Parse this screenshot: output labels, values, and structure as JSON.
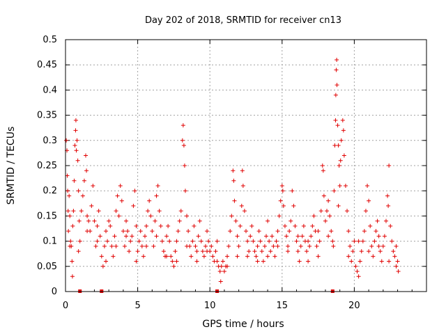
{
  "chart_data": {
    "type": "scatter",
    "title": "Day 202 of 2018, SRMTID for receiver cn13",
    "xlabel": "GPS time / hours",
    "ylabel": "SRMTID / TECUs",
    "xlim": [
      0,
      25
    ],
    "ylim": [
      0,
      0.5
    ],
    "x_ticks": [
      0,
      5,
      10,
      15,
      20
    ],
    "x_tick_labels": [
      "0",
      "5",
      "10",
      "15",
      "20"
    ],
    "y_ticks": [
      0,
      0.05,
      0.1,
      0.15,
      0.2,
      0.25,
      0.3,
      0.35,
      0.4,
      0.45,
      0.5
    ],
    "y_tick_labels": [
      "0",
      "0.05",
      "0.1",
      "0.15",
      "0.2",
      "0.25",
      "0.3",
      "0.35",
      "0.4",
      "0.45",
      "0.5"
    ],
    "grid": true,
    "marker": "+",
    "color": "#e00000",
    "series": [
      {
        "name": "SRMTID",
        "points": [
          [
            0.05,
            0.3
          ],
          [
            0.1,
            0.28
          ],
          [
            0.12,
            0.23
          ],
          [
            0.15,
            0.2
          ],
          [
            0.18,
            0.16
          ],
          [
            0.2,
            0.12
          ],
          [
            0.25,
            0.19
          ],
          [
            0.3,
            0.15
          ],
          [
            0.35,
            0.1
          ],
          [
            0.4,
            0.09
          ],
          [
            0.45,
            0.06
          ],
          [
            0.48,
            0.03
          ],
          [
            0.5,
            0.13
          ],
          [
            0.55,
            0.16
          ],
          [
            0.6,
            0.22
          ],
          [
            0.65,
            0.29
          ],
          [
            0.7,
            0.32
          ],
          [
            0.72,
            0.34
          ],
          [
            0.75,
            0.28
          ],
          [
            0.8,
            0.3
          ],
          [
            0.85,
            0.26
          ],
          [
            0.9,
            0.2
          ],
          [
            0.95,
            0.14
          ],
          [
            1.0,
            0.1
          ],
          [
            1.1,
            0.16
          ],
          [
            1.2,
            0.19
          ],
          [
            1.3,
            0.22
          ],
          [
            1.4,
            0.27
          ],
          [
            1.45,
            0.24
          ],
          [
            1.5,
            0.15
          ],
          [
            1.6,
            0.14
          ],
          [
            1.7,
            0.12
          ],
          [
            1.8,
            0.17
          ],
          [
            1.9,
            0.21
          ],
          [
            2.0,
            0.14
          ],
          [
            2.1,
            0.09
          ],
          [
            2.2,
            0.13
          ],
          [
            2.3,
            0.16
          ],
          [
            2.4,
            0.11
          ],
          [
            2.5,
            0.07
          ],
          [
            2.6,
            0.05
          ],
          [
            2.7,
            0.09
          ],
          [
            2.8,
            0.12
          ],
          [
            2.9,
            0.1
          ],
          [
            3.0,
            0.14
          ],
          [
            3.1,
            0.13
          ],
          [
            3.2,
            0.09
          ],
          [
            3.3,
            0.07
          ],
          [
            3.4,
            0.11
          ],
          [
            3.5,
            0.16
          ],
          [
            3.6,
            0.19
          ],
          [
            3.7,
            0.15
          ],
          [
            3.8,
            0.21
          ],
          [
            3.9,
            0.18
          ],
          [
            4.0,
            0.12
          ],
          [
            4.1,
            0.09
          ],
          [
            4.2,
            0.14
          ],
          [
            4.3,
            0.12
          ],
          [
            4.4,
            0.08
          ],
          [
            4.5,
            0.1
          ],
          [
            4.6,
            0.11
          ],
          [
            4.7,
            0.17
          ],
          [
            4.8,
            0.2
          ],
          [
            4.9,
            0.13
          ],
          [
            5.0,
            0.08
          ],
          [
            5.1,
            0.1
          ],
          [
            5.2,
            0.12
          ],
          [
            5.3,
            0.09
          ],
          [
            5.4,
            0.07
          ],
          [
            5.5,
            0.11
          ],
          [
            5.6,
            0.13
          ],
          [
            5.7,
            0.16
          ],
          [
            5.8,
            0.18
          ],
          [
            5.9,
            0.15
          ],
          [
            6.0,
            0.12
          ],
          [
            6.1,
            0.09
          ],
          [
            6.2,
            0.14
          ],
          [
            6.3,
            0.19
          ],
          [
            6.4,
            0.21
          ],
          [
            6.5,
            0.16
          ],
          [
            6.6,
            0.13
          ],
          [
            6.7,
            0.1
          ],
          [
            6.8,
            0.08
          ],
          [
            6.9,
            0.07
          ],
          [
            7.0,
            0.11
          ],
          [
            7.1,
            0.13
          ],
          [
            7.2,
            0.1
          ],
          [
            7.3,
            0.07
          ],
          [
            7.4,
            0.06
          ],
          [
            7.5,
            0.05
          ],
          [
            7.6,
            0.08
          ],
          [
            7.7,
            0.1
          ],
          [
            7.8,
            0.12
          ],
          [
            7.9,
            0.14
          ],
          [
            8.0,
            0.16
          ],
          [
            8.1,
            0.3
          ],
          [
            8.15,
            0.33
          ],
          [
            8.2,
            0.29
          ],
          [
            8.25,
            0.25
          ],
          [
            8.3,
            0.2
          ],
          [
            8.4,
            0.15
          ],
          [
            8.5,
            0.12
          ],
          [
            8.6,
            0.09
          ],
          [
            8.7,
            0.07
          ],
          [
            8.8,
            0.1
          ],
          [
            8.9,
            0.13
          ],
          [
            9.0,
            0.09
          ],
          [
            9.1,
            0.08
          ],
          [
            9.2,
            0.11
          ],
          [
            9.3,
            0.14
          ],
          [
            9.4,
            0.1
          ],
          [
            9.5,
            0.08
          ],
          [
            9.6,
            0.07
          ],
          [
            9.7,
            0.09
          ],
          [
            9.8,
            0.12
          ],
          [
            9.9,
            0.1
          ],
          [
            10.0,
            0.08
          ],
          [
            10.1,
            0.09
          ],
          [
            10.2,
            0.07
          ],
          [
            10.3,
            0.06
          ],
          [
            10.4,
            0.08
          ],
          [
            10.5,
            0.1
          ],
          [
            10.6,
            0.05
          ],
          [
            10.7,
            0.04
          ],
          [
            10.75,
            0.02
          ],
          [
            10.8,
            0.05
          ],
          [
            10.9,
            0.06
          ],
          [
            11.0,
            0.04
          ],
          [
            11.1,
            0.05
          ],
          [
            11.2,
            0.07
          ],
          [
            11.3,
            0.09
          ],
          [
            11.4,
            0.12
          ],
          [
            11.5,
            0.15
          ],
          [
            11.6,
            0.24
          ],
          [
            11.65,
            0.22
          ],
          [
            11.7,
            0.18
          ],
          [
            11.8,
            0.14
          ],
          [
            11.9,
            0.11
          ],
          [
            12.0,
            0.09
          ],
          [
            12.1,
            0.13
          ],
          [
            12.2,
            0.17
          ],
          [
            12.25,
            0.24
          ],
          [
            12.3,
            0.21
          ],
          [
            12.4,
            0.16
          ],
          [
            12.5,
            0.12
          ],
          [
            12.6,
            0.1
          ],
          [
            12.7,
            0.08
          ],
          [
            12.8,
            0.11
          ],
          [
            12.9,
            0.13
          ],
          [
            13.0,
            0.1
          ],
          [
            13.1,
            0.08
          ],
          [
            13.2,
            0.07
          ],
          [
            13.3,
            0.09
          ],
          [
            13.4,
            0.12
          ],
          [
            13.5,
            0.1
          ],
          [
            13.6,
            0.08
          ],
          [
            13.7,
            0.06
          ],
          [
            13.8,
            0.09
          ],
          [
            13.9,
            0.11
          ],
          [
            14.0,
            0.14
          ],
          [
            14.1,
            0.1
          ],
          [
            14.2,
            0.08
          ],
          [
            14.3,
            0.11
          ],
          [
            14.4,
            0.09
          ],
          [
            14.5,
            0.07
          ],
          [
            14.6,
            0.1
          ],
          [
            14.7,
            0.12
          ],
          [
            14.8,
            0.15
          ],
          [
            14.9,
            0.18
          ],
          [
            15.0,
            0.21
          ],
          [
            15.05,
            0.2
          ],
          [
            15.1,
            0.17
          ],
          [
            15.2,
            0.13
          ],
          [
            15.3,
            0.11
          ],
          [
            15.4,
            0.09
          ],
          [
            15.5,
            0.12
          ],
          [
            15.6,
            0.14
          ],
          [
            15.7,
            0.2
          ],
          [
            15.8,
            0.17
          ],
          [
            15.9,
            0.13
          ],
          [
            16.0,
            0.1
          ],
          [
            16.1,
            0.08
          ],
          [
            16.2,
            0.06
          ],
          [
            16.3,
            0.09
          ],
          [
            16.4,
            0.11
          ],
          [
            16.5,
            0.13
          ],
          [
            16.6,
            0.1
          ],
          [
            16.7,
            0.08
          ],
          [
            16.8,
            0.06
          ],
          [
            16.9,
            0.09
          ],
          [
            17.0,
            0.11
          ],
          [
            17.1,
            0.13
          ],
          [
            17.2,
            0.15
          ],
          [
            17.3,
            0.12
          ],
          [
            17.4,
            0.09
          ],
          [
            17.5,
            0.07
          ],
          [
            17.6,
            0.1
          ],
          [
            17.7,
            0.16
          ],
          [
            17.8,
            0.25
          ],
          [
            17.85,
            0.24
          ],
          [
            17.9,
            0.19
          ],
          [
            18.0,
            0.14
          ],
          [
            18.1,
            0.16
          ],
          [
            18.2,
            0.18
          ],
          [
            18.3,
            0.15
          ],
          [
            18.4,
            0.12
          ],
          [
            18.5,
            0.1
          ],
          [
            18.55,
            0.09
          ],
          [
            18.6,
            0.2
          ],
          [
            18.65,
            0.29
          ],
          [
            18.7,
            0.34
          ],
          [
            18.72,
            0.39
          ],
          [
            18.75,
            0.44
          ],
          [
            18.78,
            0.46
          ],
          [
            18.8,
            0.41
          ],
          [
            18.85,
            0.33
          ],
          [
            18.9,
            0.29
          ],
          [
            18.95,
            0.25
          ],
          [
            19.0,
            0.21
          ],
          [
            19.05,
            0.26
          ],
          [
            19.1,
            0.3
          ],
          [
            19.2,
            0.34
          ],
          [
            19.25,
            0.32
          ],
          [
            19.3,
            0.27
          ],
          [
            19.4,
            0.21
          ],
          [
            19.5,
            0.16
          ],
          [
            19.6,
            0.12
          ],
          [
            19.7,
            0.09
          ],
          [
            19.8,
            0.06
          ],
          [
            19.9,
            0.08
          ],
          [
            20.0,
            0.1
          ],
          [
            20.1,
            0.05
          ],
          [
            20.2,
            0.04
          ],
          [
            20.3,
            0.03
          ],
          [
            20.4,
            0.06
          ],
          [
            20.5,
            0.08
          ],
          [
            20.6,
            0.1
          ],
          [
            20.7,
            0.12
          ],
          [
            20.8,
            0.16
          ],
          [
            20.9,
            0.21
          ],
          [
            21.0,
            0.18
          ],
          [
            21.1,
            0.13
          ],
          [
            21.2,
            0.09
          ],
          [
            21.3,
            0.07
          ],
          [
            21.4,
            0.1
          ],
          [
            21.5,
            0.12
          ],
          [
            21.6,
            0.14
          ],
          [
            21.7,
            0.11
          ],
          [
            21.8,
            0.08
          ],
          [
            21.9,
            0.06
          ],
          [
            22.0,
            0.09
          ],
          [
            22.1,
            0.11
          ],
          [
            22.2,
            0.14
          ],
          [
            22.3,
            0.19
          ],
          [
            22.35,
            0.17
          ],
          [
            22.4,
            0.25
          ],
          [
            22.5,
            0.13
          ],
          [
            22.6,
            0.1
          ],
          [
            22.7,
            0.08
          ],
          [
            22.8,
            0.07
          ],
          [
            22.9,
            0.05
          ],
          [
            23.0,
            0.06
          ],
          [
            23.05,
            0.04
          ],
          [
            0.3,
            0.09
          ],
          [
            0.9,
            0.08
          ],
          [
            1.5,
            0.12
          ],
          [
            2.2,
            0.1
          ],
          [
            2.8,
            0.06
          ],
          [
            3.5,
            0.09
          ],
          [
            4.2,
            0.11
          ],
          [
            4.9,
            0.06
          ],
          [
            5.6,
            0.09
          ],
          [
            6.3,
            0.11
          ],
          [
            7.0,
            0.07
          ],
          [
            7.7,
            0.06
          ],
          [
            8.4,
            0.09
          ],
          [
            9.1,
            0.06
          ],
          [
            9.8,
            0.08
          ],
          [
            10.5,
            0.06
          ],
          [
            11.2,
            0.05
          ],
          [
            11.9,
            0.07
          ],
          [
            12.6,
            0.07
          ],
          [
            13.3,
            0.06
          ],
          [
            14.0,
            0.07
          ],
          [
            14.7,
            0.09
          ],
          [
            15.4,
            0.08
          ],
          [
            16.1,
            0.11
          ],
          [
            16.8,
            0.1
          ],
          [
            17.5,
            0.12
          ],
          [
            18.2,
            0.11
          ],
          [
            18.9,
            0.17
          ],
          [
            19.6,
            0.07
          ],
          [
            20.3,
            0.1
          ],
          [
            21.0,
            0.08
          ],
          [
            21.7,
            0.09
          ],
          [
            22.4,
            0.06
          ],
          [
            22.9,
            0.09
          ]
        ]
      }
    ],
    "missing_data_markers_x": [
      1.0,
      2.5,
      10.5,
      18.5
    ]
  }
}
